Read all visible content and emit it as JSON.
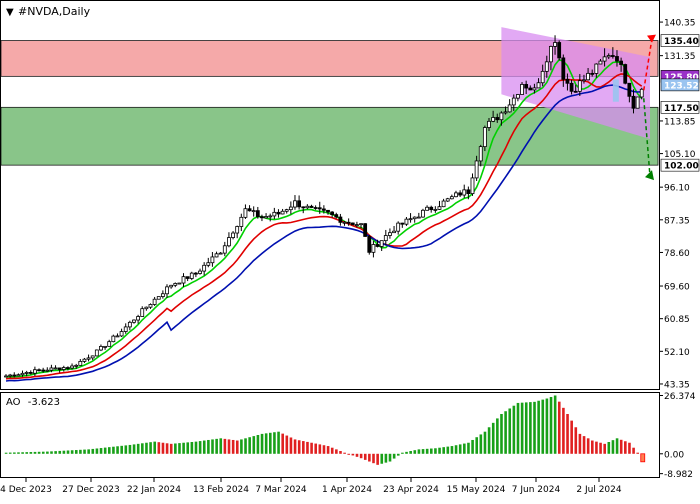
{
  "symbol_title": "#NVDA,Daily",
  "colors": {
    "bull_candle": "#ffffff",
    "bear_candle": "#000000",
    "ma_fast": "#00d000",
    "ma_mid": "#e00000",
    "ma_slow": "#0010b0",
    "resistance_zone": "#f4a0a0",
    "support_zone": "#7dbf7d",
    "channel": "#d88cf0",
    "ao_up": "#18a018",
    "ao_down": "#e02020",
    "arrow_up": "#ff0000",
    "arrow_down": "#008000",
    "highlight_box": "#9ac4f0"
  },
  "chart_data": [
    {
      "type": "candlestick",
      "title": "#NVDA,Daily",
      "ylim": [
        42.0,
        146.0
      ],
      "price_scale_ticks": [
        "140.35",
        "131.35",
        "113.85",
        "105.10",
        "96.10",
        "87.35",
        "78.60",
        "69.60",
        "60.85",
        "52.10",
        "43.35"
      ],
      "level_labels": [
        {
          "value": 135.4,
          "label": "135.40"
        },
        {
          "value": 125.8,
          "label": "125.80"
        },
        {
          "value": 123.52,
          "label": "123.52"
        },
        {
          "value": 117.5,
          "label": "117.50"
        },
        {
          "value": 102.0,
          "label": "102.00"
        }
      ],
      "zones": [
        {
          "name": "resistance",
          "from": 125.8,
          "to": 135.4
        },
        {
          "name": "support",
          "from": 102.0,
          "to": 117.5
        }
      ],
      "date_labels": [
        "4 Dec 2023",
        "27 Dec 2023",
        "22 Jan 2024",
        "13 Feb 2024",
        "7 Mar 2024",
        "1 Apr 2024",
        "23 Apr 2024",
        "15 May 2024",
        "7 Jun 2024",
        "2 Jul 2024"
      ],
      "close_anchors": [
        {
          "bar": 0,
          "close": 45.5
        },
        {
          "bar": 8,
          "close": 47.0
        },
        {
          "bar": 16,
          "close": 48.0
        },
        {
          "bar": 22,
          "close": 52.0
        },
        {
          "bar": 28,
          "close": 57.5
        },
        {
          "bar": 34,
          "close": 64.0
        },
        {
          "bar": 40,
          "close": 70.0
        },
        {
          "bar": 46,
          "close": 73.0
        },
        {
          "bar": 52,
          "close": 79.0
        },
        {
          "bar": 58,
          "close": 90.0
        },
        {
          "bar": 62,
          "close": 88.0
        },
        {
          "bar": 66,
          "close": 89.0
        },
        {
          "bar": 70,
          "close": 92.0
        },
        {
          "bar": 74,
          "close": 90.0
        },
        {
          "bar": 78,
          "close": 89.0
        },
        {
          "bar": 82,
          "close": 87.0
        },
        {
          "bar": 86,
          "close": 86.0
        },
        {
          "bar": 88,
          "close": 79.0
        },
        {
          "bar": 90,
          "close": 81.0
        },
        {
          "bar": 94,
          "close": 85.0
        },
        {
          "bar": 98,
          "close": 87.5
        },
        {
          "bar": 102,
          "close": 90.0
        },
        {
          "bar": 106,
          "close": 92.0
        },
        {
          "bar": 110,
          "close": 94.5
        },
        {
          "bar": 112,
          "close": 95.0
        },
        {
          "bar": 114,
          "close": 104.0
        },
        {
          "bar": 116,
          "close": 112.0
        },
        {
          "bar": 118,
          "close": 114.0
        },
        {
          "bar": 120,
          "close": 116.0
        },
        {
          "bar": 123,
          "close": 120.0
        },
        {
          "bar": 125,
          "close": 124.0
        },
        {
          "bar": 128,
          "close": 122.0
        },
        {
          "bar": 131,
          "close": 131.0
        },
        {
          "bar": 133,
          "close": 136.0
        },
        {
          "bar": 135,
          "close": 126.0
        },
        {
          "bar": 137,
          "close": 122.0
        },
        {
          "bar": 140,
          "close": 125.0
        },
        {
          "bar": 143,
          "close": 128.0
        },
        {
          "bar": 146,
          "close": 132.0
        },
        {
          "bar": 148,
          "close": 131.0
        },
        {
          "bar": 150,
          "close": 125.0
        },
        {
          "bar": 152,
          "close": 118.0
        },
        {
          "bar": 154,
          "close": 123.5
        }
      ],
      "total_bars": 156,
      "moving_averages": [
        {
          "name": "fast",
          "color_key": "ma_fast"
        },
        {
          "name": "mid",
          "color_key": "ma_mid"
        },
        {
          "name": "slow",
          "color_key": "ma_slow"
        }
      ]
    },
    {
      "type": "bar",
      "title": "AO -3.623",
      "indicator_label": "AO",
      "indicator_value": "-3.623",
      "ylim": [
        -10.5,
        27.5
      ],
      "scale_labels": [
        "26.374",
        "0.00",
        "-8.982"
      ],
      "ao_anchors": [
        {
          "bar": 0,
          "v": 0.5
        },
        {
          "bar": 10,
          "v": 1.0
        },
        {
          "bar": 20,
          "v": 2.0
        },
        {
          "bar": 30,
          "v": 4.0
        },
        {
          "bar": 36,
          "v": 5.5
        },
        {
          "bar": 40,
          "v": 4.5
        },
        {
          "bar": 46,
          "v": 5.5
        },
        {
          "bar": 52,
          "v": 7.0
        },
        {
          "bar": 56,
          "v": 6.0
        },
        {
          "bar": 62,
          "v": 9.0
        },
        {
          "bar": 66,
          "v": 10.0
        },
        {
          "bar": 70,
          "v": 6.5
        },
        {
          "bar": 74,
          "v": 5.0
        },
        {
          "bar": 78,
          "v": 3.5
        },
        {
          "bar": 82,
          "v": 0.5
        },
        {
          "bar": 86,
          "v": -2.0
        },
        {
          "bar": 90,
          "v": -5.0
        },
        {
          "bar": 93,
          "v": -3.5
        },
        {
          "bar": 96,
          "v": 0.5
        },
        {
          "bar": 100,
          "v": 2.0
        },
        {
          "bar": 104,
          "v": 2.5
        },
        {
          "bar": 108,
          "v": 3.5
        },
        {
          "bar": 112,
          "v": 5.0
        },
        {
          "bar": 116,
          "v": 10.0
        },
        {
          "bar": 120,
          "v": 18.0
        },
        {
          "bar": 124,
          "v": 23.0
        },
        {
          "bar": 128,
          "v": 23.5
        },
        {
          "bar": 131,
          "v": 25.0
        },
        {
          "bar": 133,
          "v": 26.374
        },
        {
          "bar": 136,
          "v": 18.0
        },
        {
          "bar": 139,
          "v": 9.0
        },
        {
          "bar": 142,
          "v": 6.0
        },
        {
          "bar": 145,
          "v": 4.5
        },
        {
          "bar": 148,
          "v": 7.0
        },
        {
          "bar": 151,
          "v": 5.0
        },
        {
          "bar": 153,
          "v": 0.5
        },
        {
          "bar": 154,
          "v": -3.623
        }
      ]
    }
  ]
}
